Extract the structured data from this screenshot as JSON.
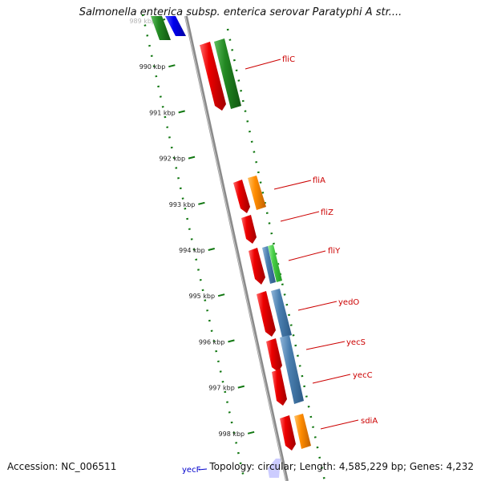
{
  "title": "Salmonella enterica subsp. enterica serovar Paratyphi A str....",
  "footer": {
    "accession": "Accession: NC_006511",
    "topology": "Topology: circular; Length: 4,585,229 bp; Genes: 4,232"
  },
  "ruler": {
    "unit": "kbp",
    "ticks": [
      {
        "kbp": 989,
        "label": "989 kbp"
      },
      {
        "kbp": 990,
        "label": "990 kbp"
      },
      {
        "kbp": 991,
        "label": "991 kbp"
      },
      {
        "kbp": 992,
        "label": "992 kbp"
      },
      {
        "kbp": 993,
        "label": "993 kbp"
      },
      {
        "kbp": 994,
        "label": "994 kbp"
      },
      {
        "kbp": 995,
        "label": "995 kbp"
      },
      {
        "kbp": 996,
        "label": "996 kbp"
      },
      {
        "kbp": 997,
        "label": "997 kbp"
      },
      {
        "kbp": 998,
        "label": "998 kbp"
      }
    ]
  },
  "genes": [
    {
      "name": "fliC",
      "start": 990.1,
      "end": 991.0,
      "color": "#dd0000",
      "feature_color": "#228822"
    },
    {
      "name": "fliA",
      "start": 992.9,
      "end": 993.5,
      "color": "#dd0000",
      "feature_color": "#ff8800"
    },
    {
      "name": "fliZ",
      "start": 993.6,
      "end": 993.9,
      "color": "#dd0000"
    },
    {
      "name": "fliY",
      "start": 994.2,
      "end": 994.8,
      "color": "#dd0000",
      "feature_color": "#4a7fb0"
    },
    {
      "name": "yedO",
      "start": 995.0,
      "end": 995.9,
      "color": "#dd0000",
      "feature_color": "#4a7fb0"
    },
    {
      "name": "yecS",
      "start": 996.0,
      "end": 996.6,
      "color": "#dd0000",
      "feature_color": "#4a7fb0"
    },
    {
      "name": "yecC",
      "start": 996.6,
      "end": 997.3,
      "color": "#dd0000",
      "feature_color": "#4a7fb0"
    },
    {
      "name": "sdiA",
      "start": 997.8,
      "end": 998.5,
      "color": "#dd0000",
      "feature_color": "#ff8800"
    }
  ],
  "bottom_gene": {
    "name": "yecF",
    "color": "#0000cc"
  },
  "colors": {
    "red": "#dd0000",
    "green": "#228822",
    "blue": "#0000ee",
    "orange": "#ff8800",
    "steel_blue": "#4a7fb0",
    "light_green": "#44cc44",
    "tick_green": "#117711",
    "backbone": "#8a8a8a"
  }
}
